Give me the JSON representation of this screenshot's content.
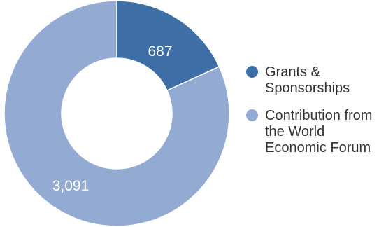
{
  "chart_data": {
    "type": "pie",
    "donut": true,
    "title": "",
    "slices": [
      {
        "label": "Grants & Sponsorships",
        "value": 687,
        "value_label": "687",
        "color": "#3d6fa6"
      },
      {
        "label": "Contribution from the World Economic Forum",
        "value": 3091,
        "value_label": "3,091",
        "color": "#93aad3"
      }
    ],
    "legend": {
      "placement": "right",
      "lines": [
        [
          "Grants &",
          "Sponsorships"
        ],
        [
          "Contribution from",
          "the World",
          "Economic Forum"
        ]
      ]
    }
  }
}
